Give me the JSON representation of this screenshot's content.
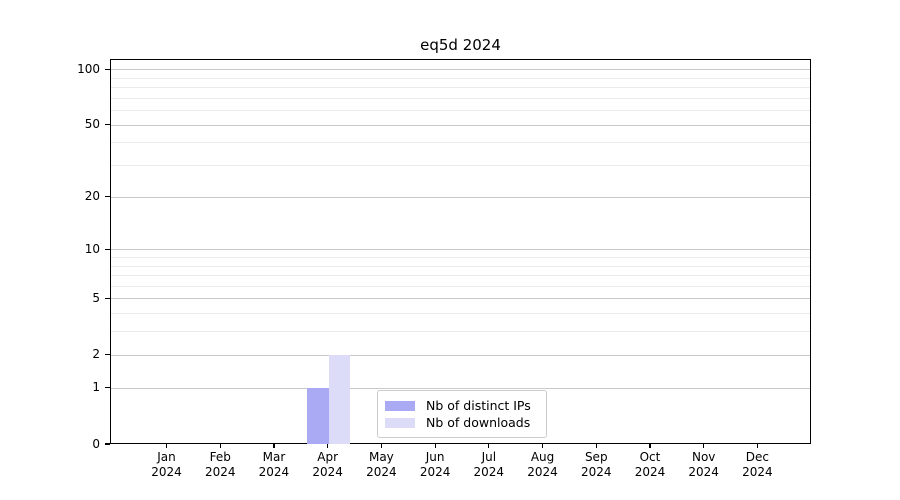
{
  "chart_data": {
    "type": "bar",
    "title": "eq5d 2024",
    "categories": [
      "Jan",
      "Feb",
      "Mar",
      "Apr",
      "May",
      "Jun",
      "Jul",
      "Aug",
      "Sep",
      "Oct",
      "Nov",
      "Dec"
    ],
    "tick_year": "2024",
    "series": [
      {
        "name": "Nb of distinct IPs",
        "color": "#aaaaf4",
        "values": [
          0,
          0,
          0,
          1,
          0,
          0,
          0,
          0,
          0,
          0,
          0,
          0
        ]
      },
      {
        "name": "Nb of downloads",
        "color": "#dcdcf8",
        "values": [
          0,
          0,
          0,
          2,
          0,
          0,
          0,
          0,
          0,
          0,
          0,
          0
        ]
      }
    ],
    "xlabel": "",
    "ylabel": "",
    "yscale": "log1p",
    "ylim": [
      0,
      114
    ],
    "yticks_major": [
      0,
      1,
      2,
      5,
      10,
      20,
      50,
      100
    ],
    "yticks_minor": [
      3,
      4,
      6,
      7,
      8,
      9,
      30,
      40,
      60,
      70,
      80,
      90
    ],
    "grid": "horizontal",
    "legend_position": "lower center"
  },
  "colors": {
    "grid_major": "#c9c9c9",
    "grid_minor": "#ebebeb",
    "spine": "#000000",
    "text": "#000000",
    "background": "#ffffff"
  }
}
